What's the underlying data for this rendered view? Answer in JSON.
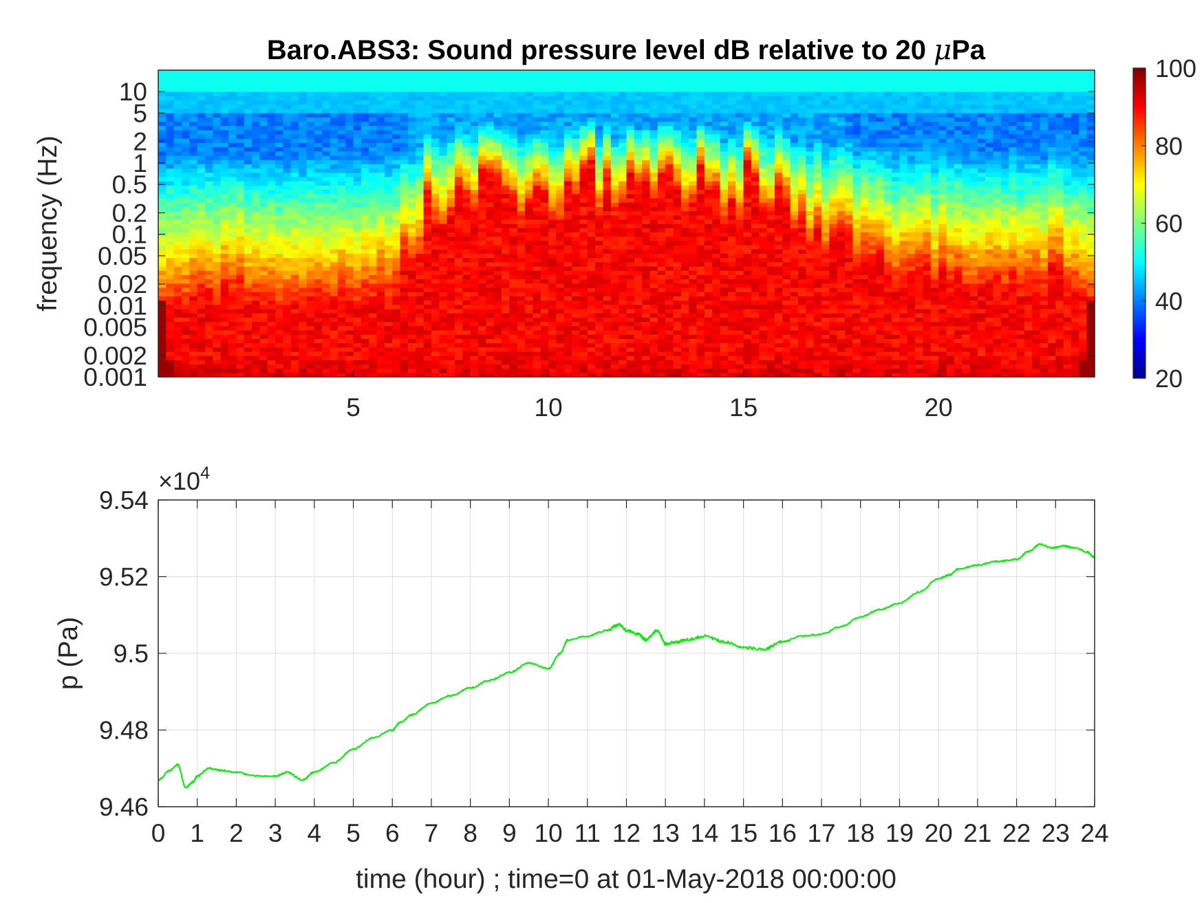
{
  "chart_data": [
    {
      "type": "heatmap",
      "title_text": "Baro.ABS3: Sound pressure level dB relative to 20 ",
      "title_mu": "μ",
      "title_unit": "Pa",
      "ylabel": "frequency (Hz)",
      "xlabel": "",
      "x_range_hours": [
        0,
        24
      ],
      "x_ticks": [
        5,
        10,
        15,
        20
      ],
      "y_scale": "log",
      "y_range_hz": [
        0.001,
        20
      ],
      "y_ticks": [
        {
          "value": 10,
          "label": "10"
        },
        {
          "value": 5,
          "label": "5"
        },
        {
          "value": 2,
          "label": "2"
        },
        {
          "value": 1,
          "label": "1"
        },
        {
          "value": 0.5,
          "label": "0.5"
        },
        {
          "value": 0.2,
          "label": "0.2"
        },
        {
          "value": 0.1,
          "label": "0.1"
        },
        {
          "value": 0.05,
          "label": "0.05"
        },
        {
          "value": 0.02,
          "label": "0.02"
        },
        {
          "value": 0.01,
          "label": "0.01"
        },
        {
          "value": 0.005,
          "label": "0.005"
        },
        {
          "value": 0.002,
          "label": "0.002"
        },
        {
          "value": 0.001,
          "label": "0.001"
        }
      ],
      "colorbar": {
        "colormap": "jet",
        "range_db": [
          20,
          100
        ],
        "ticks": [
          20,
          40,
          60,
          80,
          100
        ]
      },
      "activity_profile": {
        "description": "per-hour reach of high level energy into upper frequencies, 0=quiet 1=strong",
        "hours": [
          0,
          1,
          2,
          3,
          4,
          5,
          6,
          7,
          8,
          9,
          10,
          11,
          12,
          13,
          14,
          15,
          16,
          17,
          18,
          19,
          20,
          21,
          22,
          23,
          24
        ],
        "intensity": [
          0.15,
          0.2,
          0.25,
          0.2,
          0.2,
          0.2,
          0.3,
          0.75,
          0.85,
          0.8,
          0.8,
          0.9,
          0.85,
          0.85,
          0.95,
          0.85,
          0.8,
          0.6,
          0.45,
          0.35,
          0.35,
          0.3,
          0.3,
          0.35,
          0.2
        ]
      }
    },
    {
      "type": "line",
      "xlabel": "time (hour) ; time=0 at 01-May-2018 00:00:00",
      "ylabel": "p (Pa)",
      "exponent_times": "×",
      "exponent_base": "10",
      "exponent_power": "4",
      "ylim": [
        94600,
        95400
      ],
      "xlim": [
        0,
        24
      ],
      "grid": true,
      "line_color": "#00ee00",
      "x_ticks": [
        0,
        1,
        2,
        3,
        4,
        5,
        6,
        7,
        8,
        9,
        10,
        11,
        12,
        13,
        14,
        15,
        16,
        17,
        18,
        19,
        20,
        21,
        22,
        23,
        24
      ],
      "y_ticks": [
        {
          "value": 94600,
          "label": "9.46"
        },
        {
          "value": 94800,
          "label": "9.48"
        },
        {
          "value": 95000,
          "label": "9.5"
        },
        {
          "value": 95200,
          "label": "9.52"
        },
        {
          "value": 95400,
          "label": "9.54"
        }
      ],
      "series": [
        {
          "x": [
            0,
            0.3,
            0.5,
            0.7,
            0.9,
            1.0,
            1.3,
            1.6,
            2.0,
            2.5,
            3.0,
            3.3,
            3.7,
            4.0,
            4.5,
            5.0,
            5.5,
            6.0,
            6.2,
            6.5,
            7.0,
            7.5,
            8.0,
            8.5,
            9.0,
            9.5,
            10.0,
            10.3,
            10.5,
            11.0,
            11.5,
            11.8,
            12.0,
            12.3,
            12.5,
            12.8,
            13.0,
            13.3,
            13.5,
            14.0,
            14.5,
            15.0,
            15.5,
            16.0,
            16.5,
            17.0,
            17.5,
            18.0,
            18.5,
            19.0,
            19.5,
            20.0,
            20.3,
            20.5,
            21.0,
            21.5,
            22.0,
            22.3,
            22.6,
            22.9,
            23.2,
            23.5,
            23.8,
            24.0
          ],
          "y": [
            94670,
            94695,
            94710,
            94650,
            94665,
            94680,
            94700,
            94695,
            94690,
            94680,
            94680,
            94690,
            94670,
            94690,
            94715,
            94750,
            94780,
            94800,
            94820,
            94840,
            94870,
            94890,
            94910,
            94930,
            94950,
            94975,
            94960,
            95000,
            95035,
            95045,
            95060,
            95075,
            95060,
            95050,
            95035,
            95060,
            95025,
            95030,
            95035,
            95045,
            95030,
            95015,
            95010,
            95030,
            95045,
            95050,
            95070,
            95095,
            95115,
            95130,
            95160,
            95195,
            95205,
            95220,
            95230,
            95240,
            95245,
            95265,
            95285,
            95275,
            95280,
            95275,
            95265,
            95250
          ]
        }
      ]
    }
  ]
}
